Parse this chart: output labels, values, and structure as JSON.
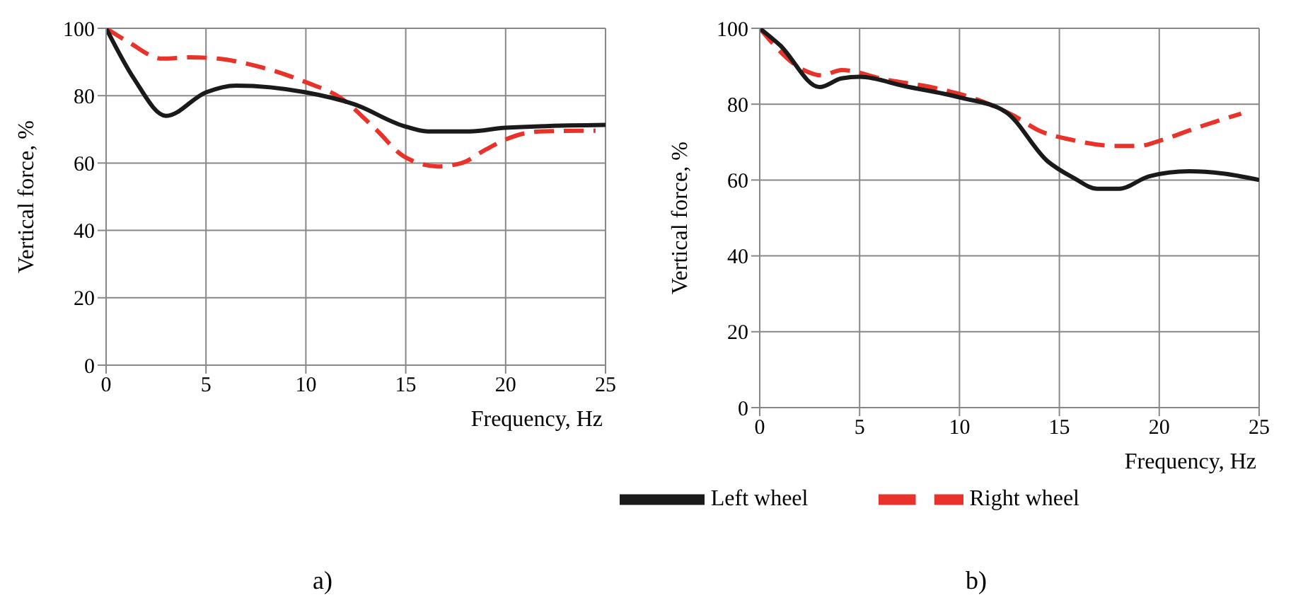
{
  "chart_data": [
    {
      "type": "line",
      "xlabel": "Frequency, Hz",
      "ylabel": "Vertical force, %",
      "annotations": [
        "a)"
      ],
      "xlim": [
        0,
        25
      ],
      "ylim": [
        0,
        100
      ],
      "xticks": [
        0,
        5,
        10,
        15,
        20,
        25
      ],
      "yticks": [
        0,
        20,
        40,
        60,
        80,
        100
      ],
      "grid": true,
      "legend": "bottom right",
      "marker": "none",
      "series": [
        {
          "name": "Right wheel",
          "color": "#e8322a",
          "line_style": "dashed",
          "x": [
            0,
            1.1,
            2.8,
            4.2,
            5.6,
            7.4,
            10,
            11.7,
            13.5,
            14.9,
            16.6,
            17.8,
            19,
            20,
            21.7,
            24.5
          ],
          "values": [
            100,
            96,
            91,
            91.4,
            91,
            89,
            84,
            79.5,
            70,
            62,
            59,
            60,
            64,
            67,
            69.4,
            69.6
          ]
        },
        {
          "name": "Left wheel",
          "color": "#1a1a1a",
          "line_style": "solid",
          "x": [
            0,
            1.4,
            3,
            5,
            6.5,
            10,
            12.4,
            14.9,
            16.1,
            18.2,
            20,
            25
          ],
          "values": [
            100,
            85,
            74,
            81,
            83,
            81,
            77.5,
            71,
            69.4,
            69.4,
            70.5,
            71.3
          ]
        }
      ]
    },
    {
      "type": "line",
      "xlabel": "Frequency, Hz",
      "ylabel": "Vertical force, %",
      "annotations": [
        "b)"
      ],
      "xlim": [
        0,
        25
      ],
      "ylim": [
        0,
        100
      ],
      "xticks": [
        0,
        5,
        10,
        15,
        20,
        25
      ],
      "yticks": [
        0,
        20,
        40,
        60,
        80,
        100
      ],
      "grid": true,
      "marker": "none",
      "series": [
        {
          "color": "#e8322a",
          "line_style": "dashed",
          "x": [
            0,
            2.2,
            3.1,
            4.1,
            6.2,
            9,
            11,
            12.7,
            14,
            15.7,
            17.8,
            19,
            20.1,
            22,
            24.1
          ],
          "values": [
            100,
            89,
            87.6,
            89,
            86.6,
            84,
            81,
            77,
            73,
            70.5,
            69,
            69,
            70.5,
            74,
            77.5
          ]
        },
        {
          "color": "#1a1a1a",
          "line_style": "solid",
          "x": [
            0,
            1,
            3,
            4.1,
            5,
            7.3,
            10,
            12.3,
            14.4,
            15.7,
            16.9,
            18,
            19.5,
            21.5,
            23.2,
            25
          ],
          "values": [
            100,
            95.6,
            84.5,
            86.8,
            87.2,
            84.7,
            81.8,
            78,
            65,
            60.6,
            57.7,
            57.7,
            61,
            62.3,
            61.7,
            60
          ]
        }
      ]
    }
  ]
}
